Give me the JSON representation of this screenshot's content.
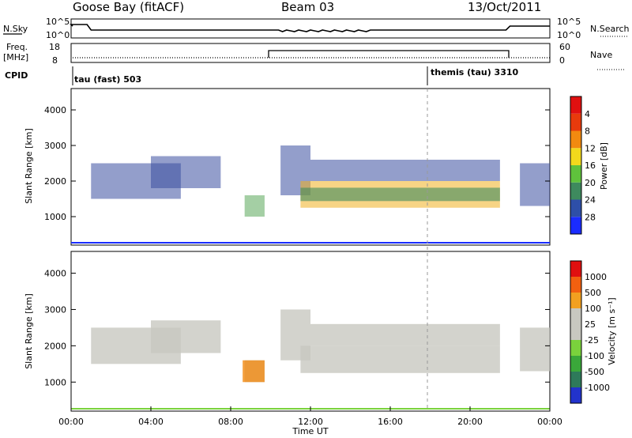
{
  "header": {
    "station": "Goose Bay (fitACF)",
    "beam": "Beam 03",
    "date": "13/Oct/2011"
  },
  "side_labels": {
    "nsky": "N.Sky",
    "nsearch": "N.Search",
    "freq": "Freq.",
    "freq_unit": "[MHz]",
    "nave": "Nave",
    "cpid": "CPID"
  },
  "noise_axis": {
    "left_ticks": [
      "10^5",
      "10^0"
    ],
    "right_ticks": [
      "10^5",
      "10^0"
    ]
  },
  "freq_axis": {
    "left_ticks": [
      "18",
      "8"
    ],
    "right_ticks": [
      "60",
      "0"
    ]
  },
  "cpid_labels": [
    {
      "text": "tau (fast) 503",
      "start_hour": 0
    },
    {
      "text": "themis (tau) 3310",
      "start_hour": 18
    }
  ],
  "chart_data": [
    {
      "type": "heatmap",
      "name": "power",
      "ylabel": "Slant Range [km]",
      "yticks": [
        1000,
        2000,
        3000,
        4000
      ],
      "ylim": [
        200,
        4600
      ],
      "xlim_hours": [
        0,
        24
      ],
      "colorbar": {
        "label": "Power [dB]",
        "ticks": [
          "4",
          "8",
          "12",
          "16",
          "20",
          "24",
          "28"
        ],
        "colors": [
          "#1a2cff",
          "#2e4fa8",
          "#3e8a5e",
          "#5fc23c",
          "#f2d91c",
          "#f28a10",
          "#e83a0c",
          "#e01010"
        ]
      },
      "regions": [
        {
          "t0": 1.0,
          "t1": 5.5,
          "r0": 1500,
          "r1": 2500,
          "value": "low"
        },
        {
          "t0": 4.0,
          "t1": 7.5,
          "r0": 1800,
          "r1": 2700,
          "value": "low"
        },
        {
          "t0": 8.7,
          "t1": 9.7,
          "r0": 1000,
          "r1": 1600,
          "value": "mid"
        },
        {
          "t0": 10.5,
          "t1": 12.0,
          "r0": 1600,
          "r1": 3000,
          "value": "low"
        },
        {
          "t0": 11.5,
          "t1": 21.5,
          "r0": 1250,
          "r1": 2000,
          "value": "high"
        },
        {
          "t0": 12.0,
          "t1": 21.5,
          "r0": 2000,
          "r1": 2600,
          "value": "low"
        },
        {
          "t0": 22.5,
          "t1": 24.0,
          "r0": 1300,
          "r1": 2500,
          "value": "low"
        }
      ]
    },
    {
      "type": "heatmap",
      "name": "velocity",
      "ylabel": "Slant Range [km]",
      "yticks": [
        1000,
        2000,
        3000,
        4000
      ],
      "ylim": [
        200,
        4600
      ],
      "xlim_hours": [
        0,
        24
      ],
      "colorbar": {
        "label": "Velocity [m s⁻¹]",
        "ticks": [
          "1000",
          "500",
          "100",
          "25",
          "-25",
          "-100",
          "-500",
          "-1000"
        ],
        "colors": [
          "#2233cc",
          "#2e7a5a",
          "#3aa83a",
          "#7ad23c",
          "#c8c8c0",
          "#c8c8c0",
          "#f2a020",
          "#f26010",
          "#e01010"
        ]
      },
      "xticks": [
        "00:00",
        "04:00",
        "08:00",
        "12:00",
        "16:00",
        "20:00",
        "00:00"
      ],
      "xlabel": "Time UT"
    }
  ]
}
